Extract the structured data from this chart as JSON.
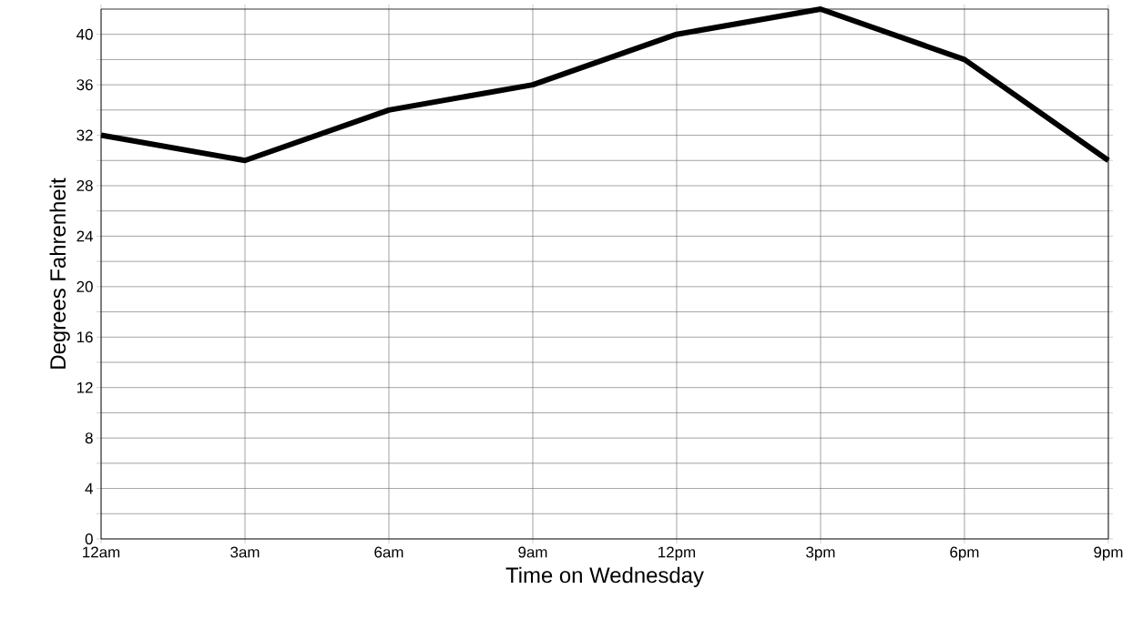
{
  "chart_data": {
    "type": "line",
    "xlabel": "Time on Wednesday",
    "ylabel": "Degrees Fahrenheit",
    "categories": [
      "12am",
      "3am",
      "6am",
      "9am",
      "12pm",
      "3pm",
      "6pm",
      "9pm"
    ],
    "series": [
      {
        "color": "#000000",
        "values": [
          32,
          30,
          34,
          36,
          40,
          42,
          38,
          30
        ]
      }
    ],
    "ylim": [
      0,
      42
    ],
    "yticks": [
      0,
      {
        "value": 2,
        "label": null
      },
      4,
      {
        "value": 6,
        "label": null
      },
      8,
      {
        "value": 10,
        "label": null
      },
      12,
      {
        "value": 14,
        "label": null
      },
      16,
      {
        "value": 18,
        "label": null
      },
      20,
      {
        "value": 22,
        "label": null
      },
      24,
      {
        "value": 26,
        "label": null
      },
      28,
      {
        "value": 30,
        "label": null
      },
      32,
      {
        "value": 34,
        "label": null
      },
      36,
      {
        "value": 38,
        "label": null
      },
      40
    ],
    "grid": true,
    "marker": "none",
    "line_style": "solid"
  }
}
